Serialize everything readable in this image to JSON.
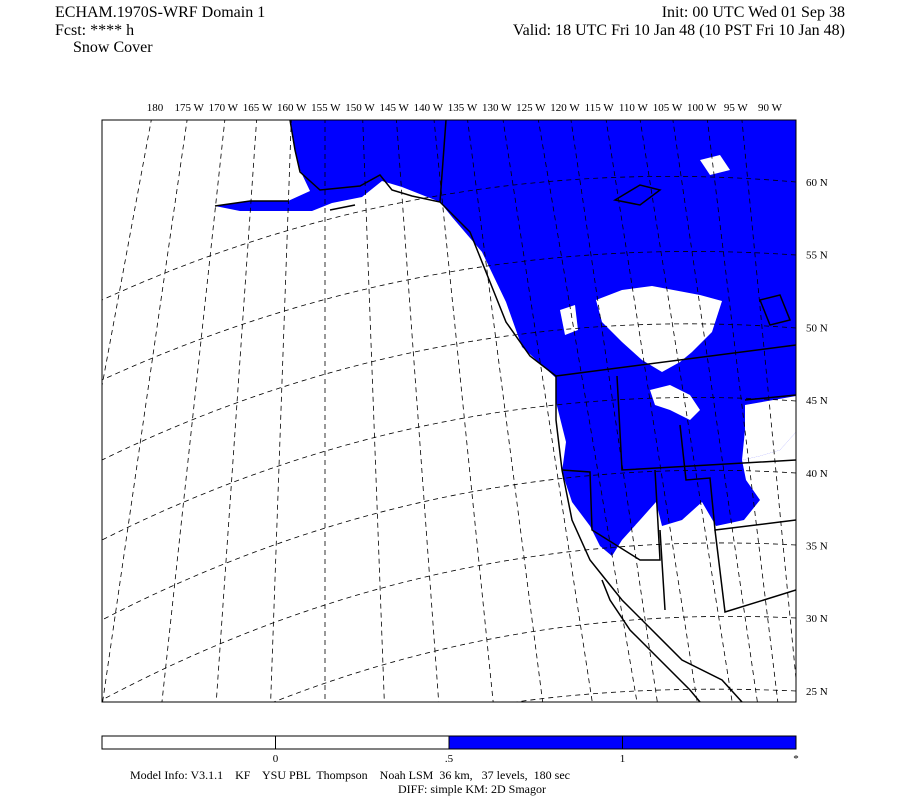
{
  "header": {
    "title": "ECHAM.1970S-WRF Domain 1",
    "forecast": "Fcst: **** h",
    "field": "Snow Cover",
    "init": "Init: 00 UTC Wed 01 Sep 38",
    "valid": "Valid: 18 UTC Fri 10 Jan 48 (10 PST Fri 10 Jan 48)"
  },
  "map": {
    "longitude_labels": [
      "180",
      "175 W",
      "170 W",
      "165 W",
      "160 W",
      "155 W",
      "150 W",
      "145 W",
      "140 W",
      "135 W",
      "130 W",
      "125 W",
      "120 W",
      "115 W",
      "110 W",
      "105 W",
      "100 W",
      "95 W",
      "90 W"
    ],
    "latitude_labels": [
      "60 N",
      "55 N",
      "50 N",
      "45 N",
      "40 N",
      "35 N",
      "30 N",
      "25 N"
    ]
  },
  "colorbar": {
    "lim": [
      -0.5,
      1.5
    ],
    "ticks": [
      0,
      {
        "value": 0.5,
        "label": ".5"
      },
      1,
      {
        "value": 1.5,
        "label": "*"
      }
    ],
    "segments": [
      {
        "from": -0.5,
        "to": 0.5,
        "color": "#ffffff"
      },
      {
        "from": 0.5,
        "to": 1.5,
        "color": "#0000ff"
      }
    ]
  },
  "footer": {
    "model_info": "Model Info: V3.1.1    KF    YSU PBL  Thompson    Noah LSM  36 km,   37 levels,  180 sec",
    "diff": "DIFF: simple KM: 2D Smagor"
  }
}
